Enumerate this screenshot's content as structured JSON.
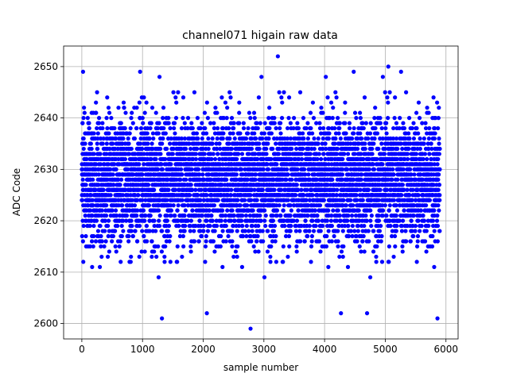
{
  "chart_data": {
    "type": "scatter",
    "title": "channel071 higain raw data",
    "xlabel": "sample number",
    "ylabel": "ADC Code",
    "xlim": [
      -300,
      6200
    ],
    "ylim": [
      2597,
      2654
    ],
    "xticks": [
      0,
      1000,
      2000,
      3000,
      4000,
      5000,
      6000
    ],
    "yticks": [
      2600,
      2610,
      2620,
      2630,
      2640,
      2650
    ],
    "grid": true,
    "marker_color": "#0000ff",
    "n_samples": 5900,
    "baseline": 2628,
    "noise_sd": 6,
    "outliers": [
      {
        "x": 20,
        "y": 2649
      },
      {
        "x": 960,
        "y": 2649
      },
      {
        "x": 1280,
        "y": 2648
      },
      {
        "x": 1320,
        "y": 2601
      },
      {
        "x": 2060,
        "y": 2602
      },
      {
        "x": 2780,
        "y": 2599
      },
      {
        "x": 2960,
        "y": 2648
      },
      {
        "x": 3230,
        "y": 2652
      },
      {
        "x": 4020,
        "y": 2648
      },
      {
        "x": 4270,
        "y": 2602
      },
      {
        "x": 4480,
        "y": 2649
      },
      {
        "x": 4700,
        "y": 2602
      },
      {
        "x": 4960,
        "y": 2648
      },
      {
        "x": 5050,
        "y": 2650
      },
      {
        "x": 5260,
        "y": 2649
      },
      {
        "x": 5860,
        "y": 2601
      }
    ]
  }
}
